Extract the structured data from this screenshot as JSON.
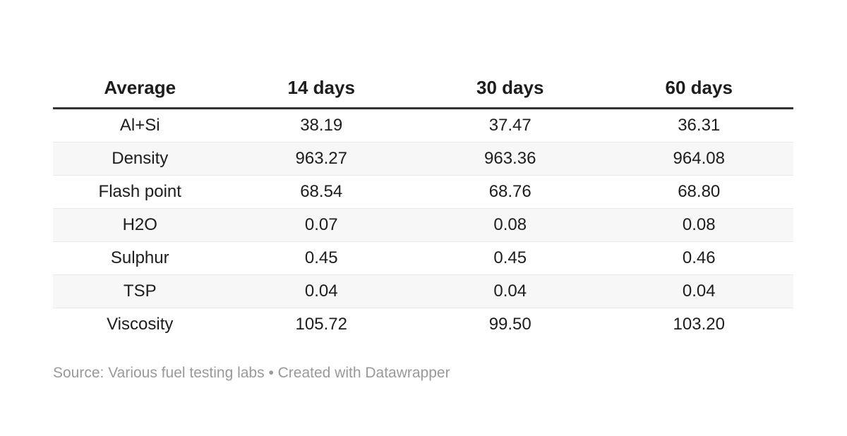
{
  "chart_data": {
    "type": "table",
    "columns": [
      "Average",
      "14 days",
      "30 days",
      "60 days"
    ],
    "rows": [
      [
        "Al+Si",
        "38.19",
        "37.47",
        "36.31"
      ],
      [
        "Density",
        "963.27",
        "963.36",
        "964.08"
      ],
      [
        "Flash point",
        "68.54",
        "68.76",
        "68.80"
      ],
      [
        "H2O",
        "0.07",
        "0.08",
        "0.08"
      ],
      [
        "Sulphur",
        "0.45",
        "0.45",
        "0.46"
      ],
      [
        "TSP",
        "0.04",
        "0.04",
        "0.04"
      ],
      [
        "Viscosity",
        "105.72",
        "99.50",
        "103.20"
      ]
    ],
    "layout": {
      "striped_rows": true,
      "stripe_pattern": "even-rows-shaded",
      "alignment": "center",
      "header_bold": true,
      "grid": "horizontal-dividers-only"
    }
  },
  "footer": {
    "source_text": "Source: Various fuel testing labs • Created with Datawrapper"
  },
  "colors": {
    "background": "#ffffff",
    "text": "#1d1d1d",
    "header_border": "#333333",
    "row_stripe": "#f7f7f7",
    "row_divider": "#e9e9e9",
    "footer_text": "#999999"
  }
}
